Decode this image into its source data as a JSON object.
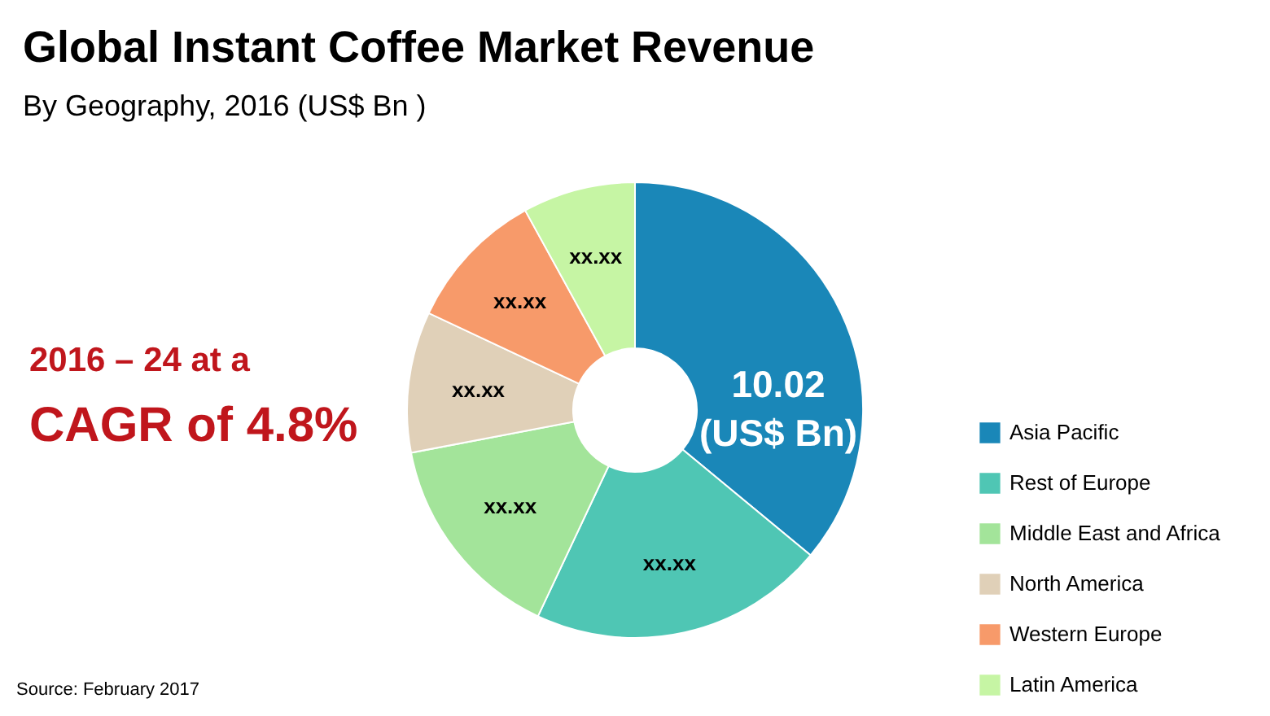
{
  "chart_data": {
    "type": "donut",
    "title": "Global Instant Coffee Market Revenue",
    "subtitle": "By Geography, 2016 (US$ Bn )",
    "categories": [
      "Asia Pacific",
      "Rest of Europe",
      "Middle East and Africa",
      "North America",
      "Western Europe",
      "Latin America"
    ],
    "values": [
      36,
      21,
      15,
      10,
      10,
      8
    ],
    "colors": [
      "#1a87b8",
      "#4fc6b4",
      "#a3e49a",
      "#e0d0b8",
      "#f79a6a",
      "#c6f5a4"
    ],
    "value_labels": [
      null,
      "xx.xx",
      "xx.xx",
      "xx.xx",
      "xx.xx",
      "xx.xx"
    ],
    "annotations": [
      "10.02 (US$ Bn)",
      "2016 – 24 at a",
      "CAGR of 4.8%",
      "Source: February 2017"
    ],
    "legend": "bottom right"
  }
}
